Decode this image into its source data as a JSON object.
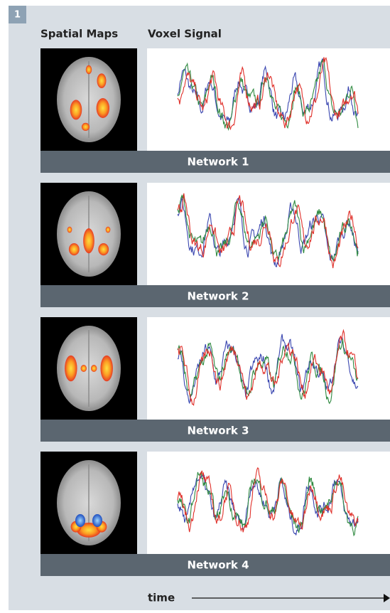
{
  "panel_number": "1",
  "headers": {
    "spatial_maps": "Spatial Maps",
    "voxel_signal": "Voxel Signal"
  },
  "networks": [
    {
      "label": "Network 1"
    },
    {
      "label": "Network 2"
    },
    {
      "label": "Network 3"
    },
    {
      "label": "Network 4"
    }
  ],
  "axis": {
    "label": "time"
  }
}
